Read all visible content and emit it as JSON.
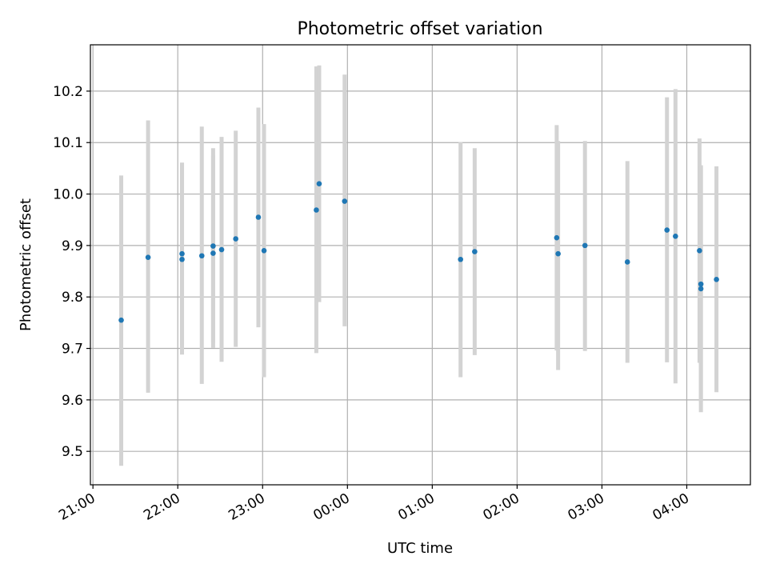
{
  "chart_data": {
    "type": "scatter",
    "title": "Photometric offset variation",
    "xlabel": "UTC time",
    "ylabel": "Photometric offset",
    "grid": true,
    "colors": {
      "point": "#1f77b4",
      "errorbar": "#d3d3d3",
      "grid": "#b0b0b0"
    },
    "x_axis": {
      "min_hours": -0.03,
      "max_hours": 7.75,
      "tick_labels": [
        "21:00",
        "22:00",
        "23:00",
        "00:00",
        "01:00",
        "02:00",
        "03:00",
        "04:00"
      ]
    },
    "ylim": [
      9.435,
      10.29
    ],
    "y_ticks": [
      9.5,
      9.6,
      9.7,
      9.8,
      9.9,
      10.0,
      10.1,
      10.2
    ],
    "y_tick_labels": [
      "9.5",
      "9.6",
      "9.7",
      "9.8",
      "9.9",
      "10.0",
      "10.1",
      "10.2"
    ],
    "points": [
      {
        "t": "21:20",
        "y": 9.755,
        "err_low": 9.472,
        "err_high": 10.036
      },
      {
        "t": "21:39",
        "y": 9.877,
        "err_low": 9.614,
        "err_high": 10.143
      },
      {
        "t": "22:03",
        "y": 9.884,
        "err_low": 9.706,
        "err_high": 10.061
      },
      {
        "t": "22:03",
        "y": 9.873,
        "err_low": 9.688,
        "err_high": 10.06
      },
      {
        "t": "22:17",
        "y": 9.88,
        "err_low": 9.631,
        "err_high": 10.131
      },
      {
        "t": "22:25",
        "y": 9.885,
        "err_low": 9.701,
        "err_high": 10.075
      },
      {
        "t": "22:25",
        "y": 9.899,
        "err_low": 9.711,
        "err_high": 10.089
      },
      {
        "t": "22:31",
        "y": 9.892,
        "err_low": 9.674,
        "err_high": 10.111
      },
      {
        "t": "22:41",
        "y": 9.913,
        "err_low": 9.703,
        "err_high": 10.123
      },
      {
        "t": "22:57",
        "y": 9.955,
        "err_low": 9.741,
        "err_high": 10.168
      },
      {
        "t": "23:01",
        "y": 9.89,
        "err_low": 9.644,
        "err_high": 10.136
      },
      {
        "t": "23:38",
        "y": 9.969,
        "err_low": 9.691,
        "err_high": 10.248
      },
      {
        "t": "23:40",
        "y": 10.02,
        "err_low": 9.79,
        "err_high": 10.25
      },
      {
        "t": "23:58",
        "y": 9.986,
        "err_low": 9.743,
        "err_high": 10.232
      },
      {
        "t": "01:20",
        "y": 9.873,
        "err_low": 9.644,
        "err_high": 10.101
      },
      {
        "t": "01:30",
        "y": 9.888,
        "err_low": 9.687,
        "err_high": 10.089
      },
      {
        "t": "02:28",
        "y": 9.915,
        "err_low": 9.696,
        "err_high": 10.134
      },
      {
        "t": "02:29",
        "y": 9.884,
        "err_low": 9.658,
        "err_high": 10.103
      },
      {
        "t": "02:48",
        "y": 9.9,
        "err_low": 9.695,
        "err_high": 10.103
      },
      {
        "t": "03:18",
        "y": 9.868,
        "err_low": 9.672,
        "err_high": 10.064
      },
      {
        "t": "03:46",
        "y": 9.93,
        "err_low": 9.673,
        "err_high": 10.188
      },
      {
        "t": "03:52",
        "y": 9.918,
        "err_low": 9.632,
        "err_high": 10.204
      },
      {
        "t": "04:09",
        "y": 9.89,
        "err_low": 9.672,
        "err_high": 10.108
      },
      {
        "t": "04:10",
        "y": 9.825,
        "err_low": 9.596,
        "err_high": 10.054
      },
      {
        "t": "04:10",
        "y": 9.816,
        "err_low": 9.576,
        "err_high": 10.056
      },
      {
        "t": "04:21",
        "y": 9.834,
        "err_low": 9.615,
        "err_high": 10.054
      }
    ]
  }
}
